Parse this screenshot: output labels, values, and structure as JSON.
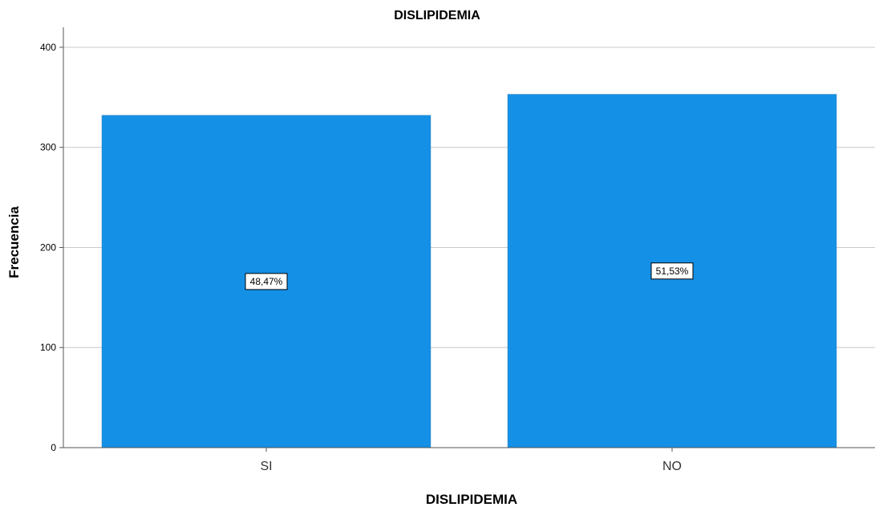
{
  "chart_data": {
    "type": "bar",
    "title": "DISLIPIDEMIA",
    "xlabel": "DISLIPIDEMIA",
    "ylabel": "Frecuencia",
    "categories": [
      "SI",
      "NO"
    ],
    "values": [
      332,
      353
    ],
    "data_labels": [
      "48,47%",
      "51,53%"
    ],
    "yticks": [
      0,
      100,
      200,
      300,
      400
    ],
    "ylim": [
      0,
      420
    ],
    "grid": true,
    "bar_color": "#1490E6"
  }
}
